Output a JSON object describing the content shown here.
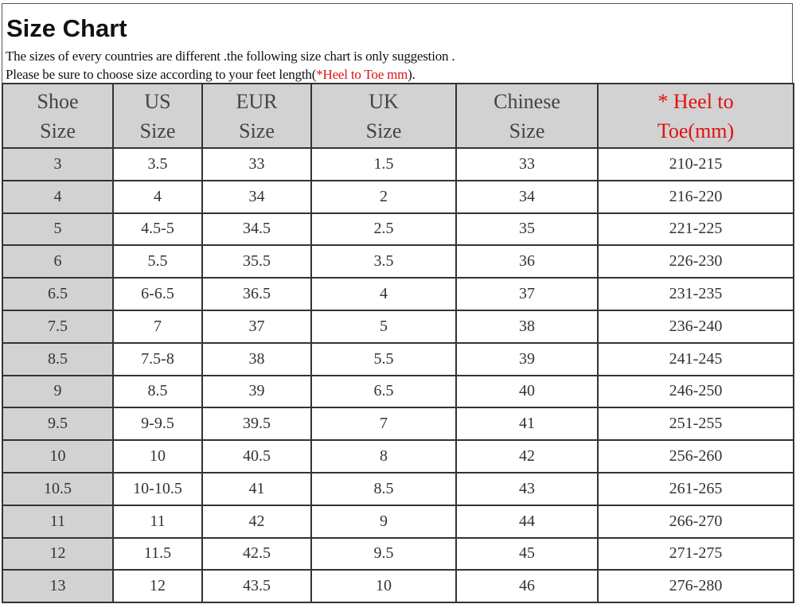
{
  "title": "Size Chart",
  "intro_line1": "The sizes of every countries are different .the following size chart is only suggestion .",
  "intro_line2_prefix": "Please be sure to choose size according to your feet length(",
  "intro_line2_highlight": "*Heel to Toe mm",
  "intro_line2_suffix": ").",
  "colors": {
    "highlight": "#e01010",
    "header_bg": "#d2d2d2"
  },
  "table": {
    "headers": [
      [
        "Shoe",
        "Size"
      ],
      [
        "US",
        "Size"
      ],
      [
        "EUR",
        "Size"
      ],
      [
        "UK",
        "Size"
      ],
      [
        "Chinese",
        "Size"
      ],
      [
        "* Heel to",
        "Toe(mm)"
      ]
    ],
    "rows": [
      [
        "3",
        "3.5",
        "33",
        "1.5",
        "33",
        "210-215"
      ],
      [
        "4",
        "4",
        "34",
        "2",
        "34",
        "216-220"
      ],
      [
        "5",
        "4.5-5",
        "34.5",
        "2.5",
        "35",
        "221-225"
      ],
      [
        "6",
        "5.5",
        "35.5",
        "3.5",
        "36",
        "226-230"
      ],
      [
        "6.5",
        "6-6.5",
        "36.5",
        "4",
        "37",
        "231-235"
      ],
      [
        "7.5",
        "7",
        "37",
        "5",
        "38",
        "236-240"
      ],
      [
        "8.5",
        "7.5-8",
        "38",
        "5.5",
        "39",
        "241-245"
      ],
      [
        "9",
        "8.5",
        "39",
        "6.5",
        "40",
        "246-250"
      ],
      [
        "9.5",
        "9-9.5",
        "39.5",
        "7",
        "41",
        "251-255"
      ],
      [
        "10",
        "10",
        "40.5",
        "8",
        "42",
        "256-260"
      ],
      [
        "10.5",
        "10-10.5",
        "41",
        "8.5",
        "43",
        "261-265"
      ],
      [
        "11",
        "11",
        "42",
        "9",
        "44",
        "266-270"
      ],
      [
        "12",
        "11.5",
        "42.5",
        "9.5",
        "45",
        "271-275"
      ],
      [
        "13",
        "12",
        "43.5",
        "10",
        "46",
        "276-280"
      ]
    ]
  }
}
